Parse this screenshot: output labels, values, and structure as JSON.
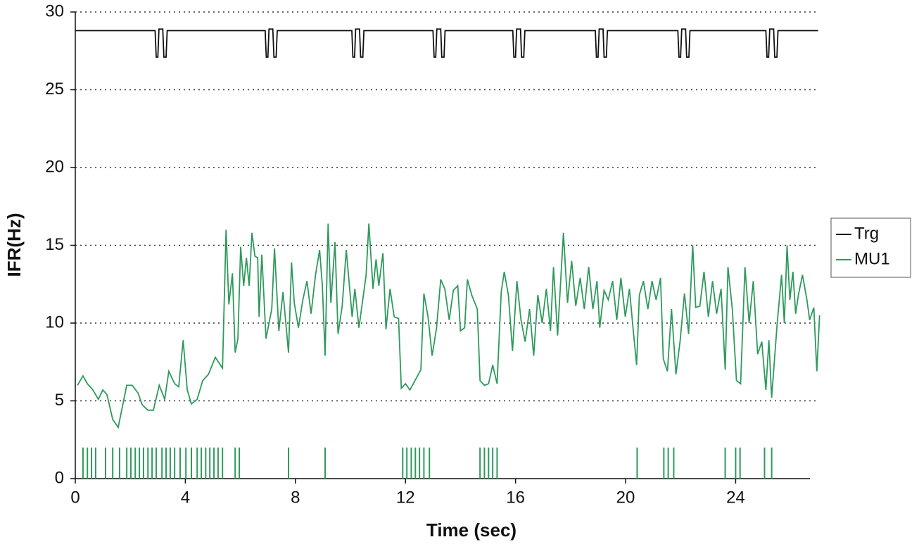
{
  "chart_data": {
    "type": "line",
    "xlabel": "Time (sec)",
    "ylabel": "IFR(Hz)",
    "xlim": [
      0,
      26.7
    ],
    "xticks": [
      0,
      4,
      8,
      12,
      16,
      20,
      24
    ],
    "ylim": [
      0,
      30
    ],
    "yticks": [
      0,
      5,
      10,
      15,
      20,
      25,
      30
    ],
    "grid": true,
    "legend": "right",
    "series": [
      {
        "name": "Trg",
        "color": "#111111",
        "x": [
          0,
          2.9,
          2.94,
          3.0,
          3.04,
          3.18,
          3.22,
          3.3,
          3.34,
          6.9,
          6.94,
          7.0,
          7.04,
          7.18,
          7.22,
          7.3,
          7.34,
          10.05,
          10.09,
          10.15,
          10.19,
          10.33,
          10.37,
          10.45,
          10.49,
          13.0,
          13.04,
          13.1,
          13.14,
          13.28,
          13.32,
          13.4,
          13.44,
          15.9,
          15.94,
          16.0,
          16.04,
          16.18,
          16.22,
          16.3,
          16.34,
          18.9,
          18.94,
          19.0,
          19.04,
          19.18,
          19.22,
          19.3,
          19.34,
          21.9,
          21.94,
          22.0,
          22.04,
          22.18,
          22.22,
          22.3,
          22.34,
          25.1,
          25.14,
          25.2,
          25.24,
          25.38,
          25.42,
          25.5,
          25.54,
          27.0
        ],
        "values": [
          28.8,
          28.8,
          27.1,
          27.1,
          28.9,
          28.9,
          27.1,
          27.1,
          28.8,
          28.8,
          27.1,
          27.1,
          28.9,
          28.9,
          27.1,
          27.1,
          28.8,
          28.8,
          27.1,
          27.1,
          28.9,
          28.9,
          27.1,
          27.1,
          28.8,
          28.8,
          27.1,
          27.1,
          28.9,
          28.9,
          27.1,
          27.1,
          28.8,
          28.8,
          27.1,
          27.1,
          28.9,
          28.9,
          27.1,
          27.1,
          28.8,
          28.8,
          27.1,
          27.1,
          28.9,
          28.9,
          27.1,
          27.1,
          28.8,
          28.8,
          27.1,
          27.1,
          28.9,
          28.9,
          27.1,
          27.1,
          28.8,
          28.8,
          27.1,
          27.1,
          28.9,
          28.9,
          27.1,
          27.1,
          28.8,
          28.8
        ]
      },
      {
        "name": "MU1",
        "color": "#2e9a5c",
        "x": [
          0.08,
          0.28,
          0.44,
          0.64,
          0.84,
          1.0,
          1.15,
          1.36,
          1.56,
          1.87,
          2.07,
          2.28,
          2.43,
          2.64,
          2.84,
          3.05,
          3.25,
          3.4,
          3.61,
          3.76,
          3.92,
          4.07,
          4.22,
          4.43,
          4.63,
          4.84,
          5.09,
          5.35,
          5.48,
          5.58,
          5.71,
          5.81,
          5.91,
          6.01,
          6.12,
          6.22,
          6.32,
          6.42,
          6.53,
          6.63,
          6.68,
          6.78,
          6.93,
          7.14,
          7.24,
          7.4,
          7.55,
          7.75,
          7.86,
          7.96,
          8.11,
          8.27,
          8.42,
          8.57,
          8.73,
          8.88,
          8.98,
          9.08,
          9.19,
          9.29,
          9.44,
          9.55,
          9.7,
          9.85,
          10.06,
          10.16,
          10.31,
          10.47,
          10.57,
          10.67,
          10.82,
          10.93,
          11.03,
          11.18,
          11.29,
          11.44,
          11.59,
          11.75,
          11.85,
          12.0,
          12.16,
          12.56,
          12.67,
          12.82,
          12.97,
          13.13,
          13.28,
          13.43,
          13.59,
          13.74,
          13.9,
          14.0,
          14.15,
          14.25,
          14.41,
          14.61,
          14.71,
          14.87,
          15.02,
          15.17,
          15.33,
          15.48,
          15.59,
          15.74,
          15.89,
          16.05,
          16.2,
          16.35,
          16.51,
          16.66,
          16.81,
          16.97,
          17.12,
          17.27,
          17.38,
          17.53,
          17.63,
          17.74,
          17.89,
          18.04,
          18.19,
          18.35,
          18.5,
          18.66,
          18.81,
          18.96,
          19.06,
          19.22,
          19.37,
          19.53,
          19.68,
          19.83,
          19.99,
          20.14,
          20.29,
          20.4,
          20.5,
          20.65,
          20.81,
          20.96,
          21.11,
          21.27,
          21.37,
          21.52,
          21.67,
          21.83,
          21.98,
          22.14,
          22.29,
          22.44,
          22.55,
          22.7,
          22.85,
          23.01,
          23.16,
          23.31,
          23.47,
          23.62,
          23.72,
          23.88,
          24.03,
          24.18,
          24.34,
          24.49,
          24.64,
          24.8,
          24.95,
          25.1,
          25.21,
          25.31,
          25.51,
          25.67,
          25.77,
          25.87,
          25.97,
          26.08,
          26.18,
          26.28,
          26.43,
          26.59,
          26.69,
          26.84,
          26.95,
          27.05
        ],
        "values": [
          6.0,
          6.6,
          6.1,
          5.7,
          5.1,
          5.7,
          5.4,
          3.8,
          3.3,
          6.0,
          6.0,
          5.5,
          4.75,
          4.4,
          4.4,
          6.0,
          5.1,
          6.9,
          6.1,
          5.9,
          8.9,
          5.7,
          4.8,
          5.1,
          6.3,
          6.7,
          7.8,
          7.1,
          16.0,
          11.2,
          13.2,
          8.1,
          9.0,
          14.9,
          12.4,
          14.2,
          12.4,
          15.8,
          14.3,
          14.2,
          10.4,
          14.4,
          9.0,
          10.9,
          14.8,
          9.5,
          12.0,
          8.1,
          13.9,
          11.3,
          9.7,
          11.5,
          12.7,
          10.6,
          13.1,
          14.7,
          12.4,
          7.9,
          16.4,
          11.3,
          15.2,
          9.3,
          11.1,
          14.7,
          10.4,
          12.2,
          9.7,
          11.8,
          13.1,
          16.4,
          12.2,
          14.1,
          12.4,
          14.5,
          9.6,
          12.2,
          10.4,
          10.3,
          5.8,
          6.1,
          5.7,
          7.0,
          11.9,
          10.4,
          7.9,
          9.7,
          12.8,
          12.2,
          10.2,
          12.1,
          12.4,
          9.5,
          9.7,
          12.8,
          11.8,
          10.9,
          6.3,
          6.0,
          6.1,
          7.3,
          6.1,
          12.0,
          13.3,
          11.8,
          8.2,
          12.7,
          10.2,
          8.8,
          10.9,
          7.9,
          11.8,
          10.0,
          12.2,
          9.5,
          13.6,
          9.2,
          12.4,
          15.8,
          11.3,
          14.0,
          11.1,
          12.9,
          10.9,
          13.6,
          10.9,
          12.7,
          9.7,
          12.1,
          11.5,
          12.7,
          10.2,
          12.9,
          10.4,
          12.2,
          9.3,
          7.3,
          11.8,
          12.7,
          10.9,
          12.7,
          11.5,
          12.9,
          7.7,
          6.9,
          10.9,
          6.7,
          8.8,
          11.9,
          9.3,
          15.0,
          11.0,
          11.1,
          13.3,
          10.4,
          12.7,
          10.6,
          12.2,
          7.0,
          13.6,
          10.9,
          6.3,
          6.1,
          13.6,
          10.0,
          12.7,
          8.0,
          8.8,
          5.7,
          8.9,
          5.2,
          10.0,
          13.1,
          10.0,
          15.0,
          11.5,
          13.3,
          10.6,
          11.8,
          13.1,
          11.5,
          10.2,
          11.0,
          6.9,
          10.5
        ]
      }
    ],
    "raster_height": 2,
    "raster_x": [
      0.28,
      0.44,
      0.59,
      0.74,
      1.1,
      1.36,
      1.61,
      1.87,
      2.02,
      2.18,
      2.33,
      2.48,
      2.64,
      2.79,
      2.94,
      3.15,
      3.3,
      3.45,
      3.61,
      3.81,
      4.02,
      4.22,
      4.43,
      4.58,
      4.74,
      4.89,
      5.04,
      5.19,
      5.35,
      5.81,
      5.96,
      7.75,
      9.08,
      11.9,
      12.05,
      12.21,
      12.36,
      12.51,
      12.67,
      12.87,
      14.71,
      14.87,
      15.02,
      15.17,
      15.33,
      20.42,
      21.39,
      21.55,
      21.75,
      23.62,
      24.0,
      24.16,
      25.05,
      25.31
    ]
  }
}
